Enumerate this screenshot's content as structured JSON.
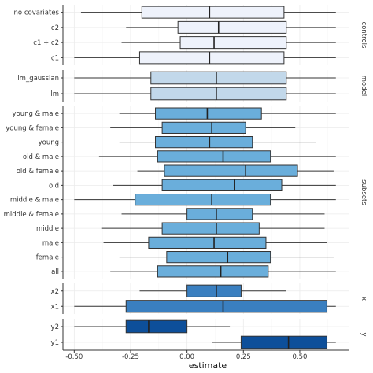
{
  "chart_data": {
    "type": "boxplot",
    "xlabel": "estimate",
    "xlim": [
      -0.55,
      0.72
    ],
    "x_ticks": [
      -0.5,
      -0.25,
      0.0,
      0.25,
      0.5
    ],
    "x_tick_labels": [
      "-0.50",
      "-0.25",
      "0.00",
      "0.25",
      "0.50"
    ],
    "grid": true,
    "facets": [
      {
        "label": "controls",
        "color": "#eef2fb",
        "rows": [
          {
            "label": "no covariates",
            "min": -0.47,
            "q1": -0.2,
            "median": 0.1,
            "q3": 0.43,
            "max": 0.66
          },
          {
            "label": "c2",
            "min": -0.27,
            "q1": -0.04,
            "median": 0.14,
            "q3": 0.44,
            "max": 0.66
          },
          {
            "label": "c1 + c2",
            "min": -0.29,
            "q1": -0.03,
            "median": 0.12,
            "q3": 0.44,
            "max": 0.66
          },
          {
            "label": "c1",
            "min": -0.5,
            "q1": -0.21,
            "median": 0.1,
            "q3": 0.43,
            "max": 0.66
          }
        ]
      },
      {
        "label": "model",
        "color": "#c2d8ea",
        "rows": [
          {
            "label": "lm_gaussian",
            "min": -0.5,
            "q1": -0.16,
            "median": 0.13,
            "q3": 0.44,
            "max": 0.66
          },
          {
            "label": "lm",
            "min": -0.5,
            "q1": -0.16,
            "median": 0.13,
            "q3": 0.44,
            "max": 0.66
          }
        ]
      },
      {
        "label": "subsets",
        "color": "#6aaedb",
        "rows": [
          {
            "label": "young & male",
            "min": -0.3,
            "q1": -0.14,
            "median": 0.09,
            "q3": 0.33,
            "max": 0.66
          },
          {
            "label": "young & female",
            "min": -0.34,
            "q1": -0.11,
            "median": 0.11,
            "q3": 0.26,
            "max": 0.48
          },
          {
            "label": "young",
            "min": -0.3,
            "q1": -0.14,
            "median": 0.1,
            "q3": 0.29,
            "max": 0.57
          },
          {
            "label": "old & male",
            "min": -0.39,
            "q1": -0.13,
            "median": 0.16,
            "q3": 0.37,
            "max": 0.66
          },
          {
            "label": "old & female",
            "min": -0.22,
            "q1": -0.1,
            "median": 0.26,
            "q3": 0.49,
            "max": 0.65
          },
          {
            "label": "old",
            "min": -0.33,
            "q1": -0.11,
            "median": 0.21,
            "q3": 0.42,
            "max": 0.66
          },
          {
            "label": "middle & male",
            "min": -0.5,
            "q1": -0.23,
            "median": 0.11,
            "q3": 0.37,
            "max": 0.66
          },
          {
            "label": "middle & female",
            "min": -0.29,
            "q1": 0.0,
            "median": 0.13,
            "q3": 0.29,
            "max": 0.61
          },
          {
            "label": "middle",
            "min": -0.38,
            "q1": -0.11,
            "median": 0.13,
            "q3": 0.32,
            "max": 0.61
          },
          {
            "label": "male",
            "min": -0.37,
            "q1": -0.17,
            "median": 0.12,
            "q3": 0.35,
            "max": 0.62
          },
          {
            "label": "female",
            "min": -0.3,
            "q1": -0.09,
            "median": 0.18,
            "q3": 0.37,
            "max": 0.65
          },
          {
            "label": "all",
            "min": -0.34,
            "q1": -0.13,
            "median": 0.15,
            "q3": 0.36,
            "max": 0.66
          }
        ]
      },
      {
        "label": "x",
        "color": "#3a7fc0",
        "rows": [
          {
            "label": "x2",
            "min": -0.21,
            "q1": 0.0,
            "median": 0.13,
            "q3": 0.24,
            "max": 0.44
          },
          {
            "label": "x1",
            "min": -0.5,
            "q1": -0.27,
            "median": 0.16,
            "q3": 0.62,
            "max": 0.66
          }
        ]
      },
      {
        "label": "y",
        "color": "#0d4f9a",
        "rows": [
          {
            "label": "y2",
            "min": -0.5,
            "q1": -0.27,
            "median": -0.17,
            "q3": 0.0,
            "max": 0.19
          },
          {
            "label": "y1",
            "min": 0.11,
            "q1": 0.24,
            "median": 0.45,
            "q3": 0.62,
            "max": 0.66
          }
        ]
      }
    ]
  }
}
